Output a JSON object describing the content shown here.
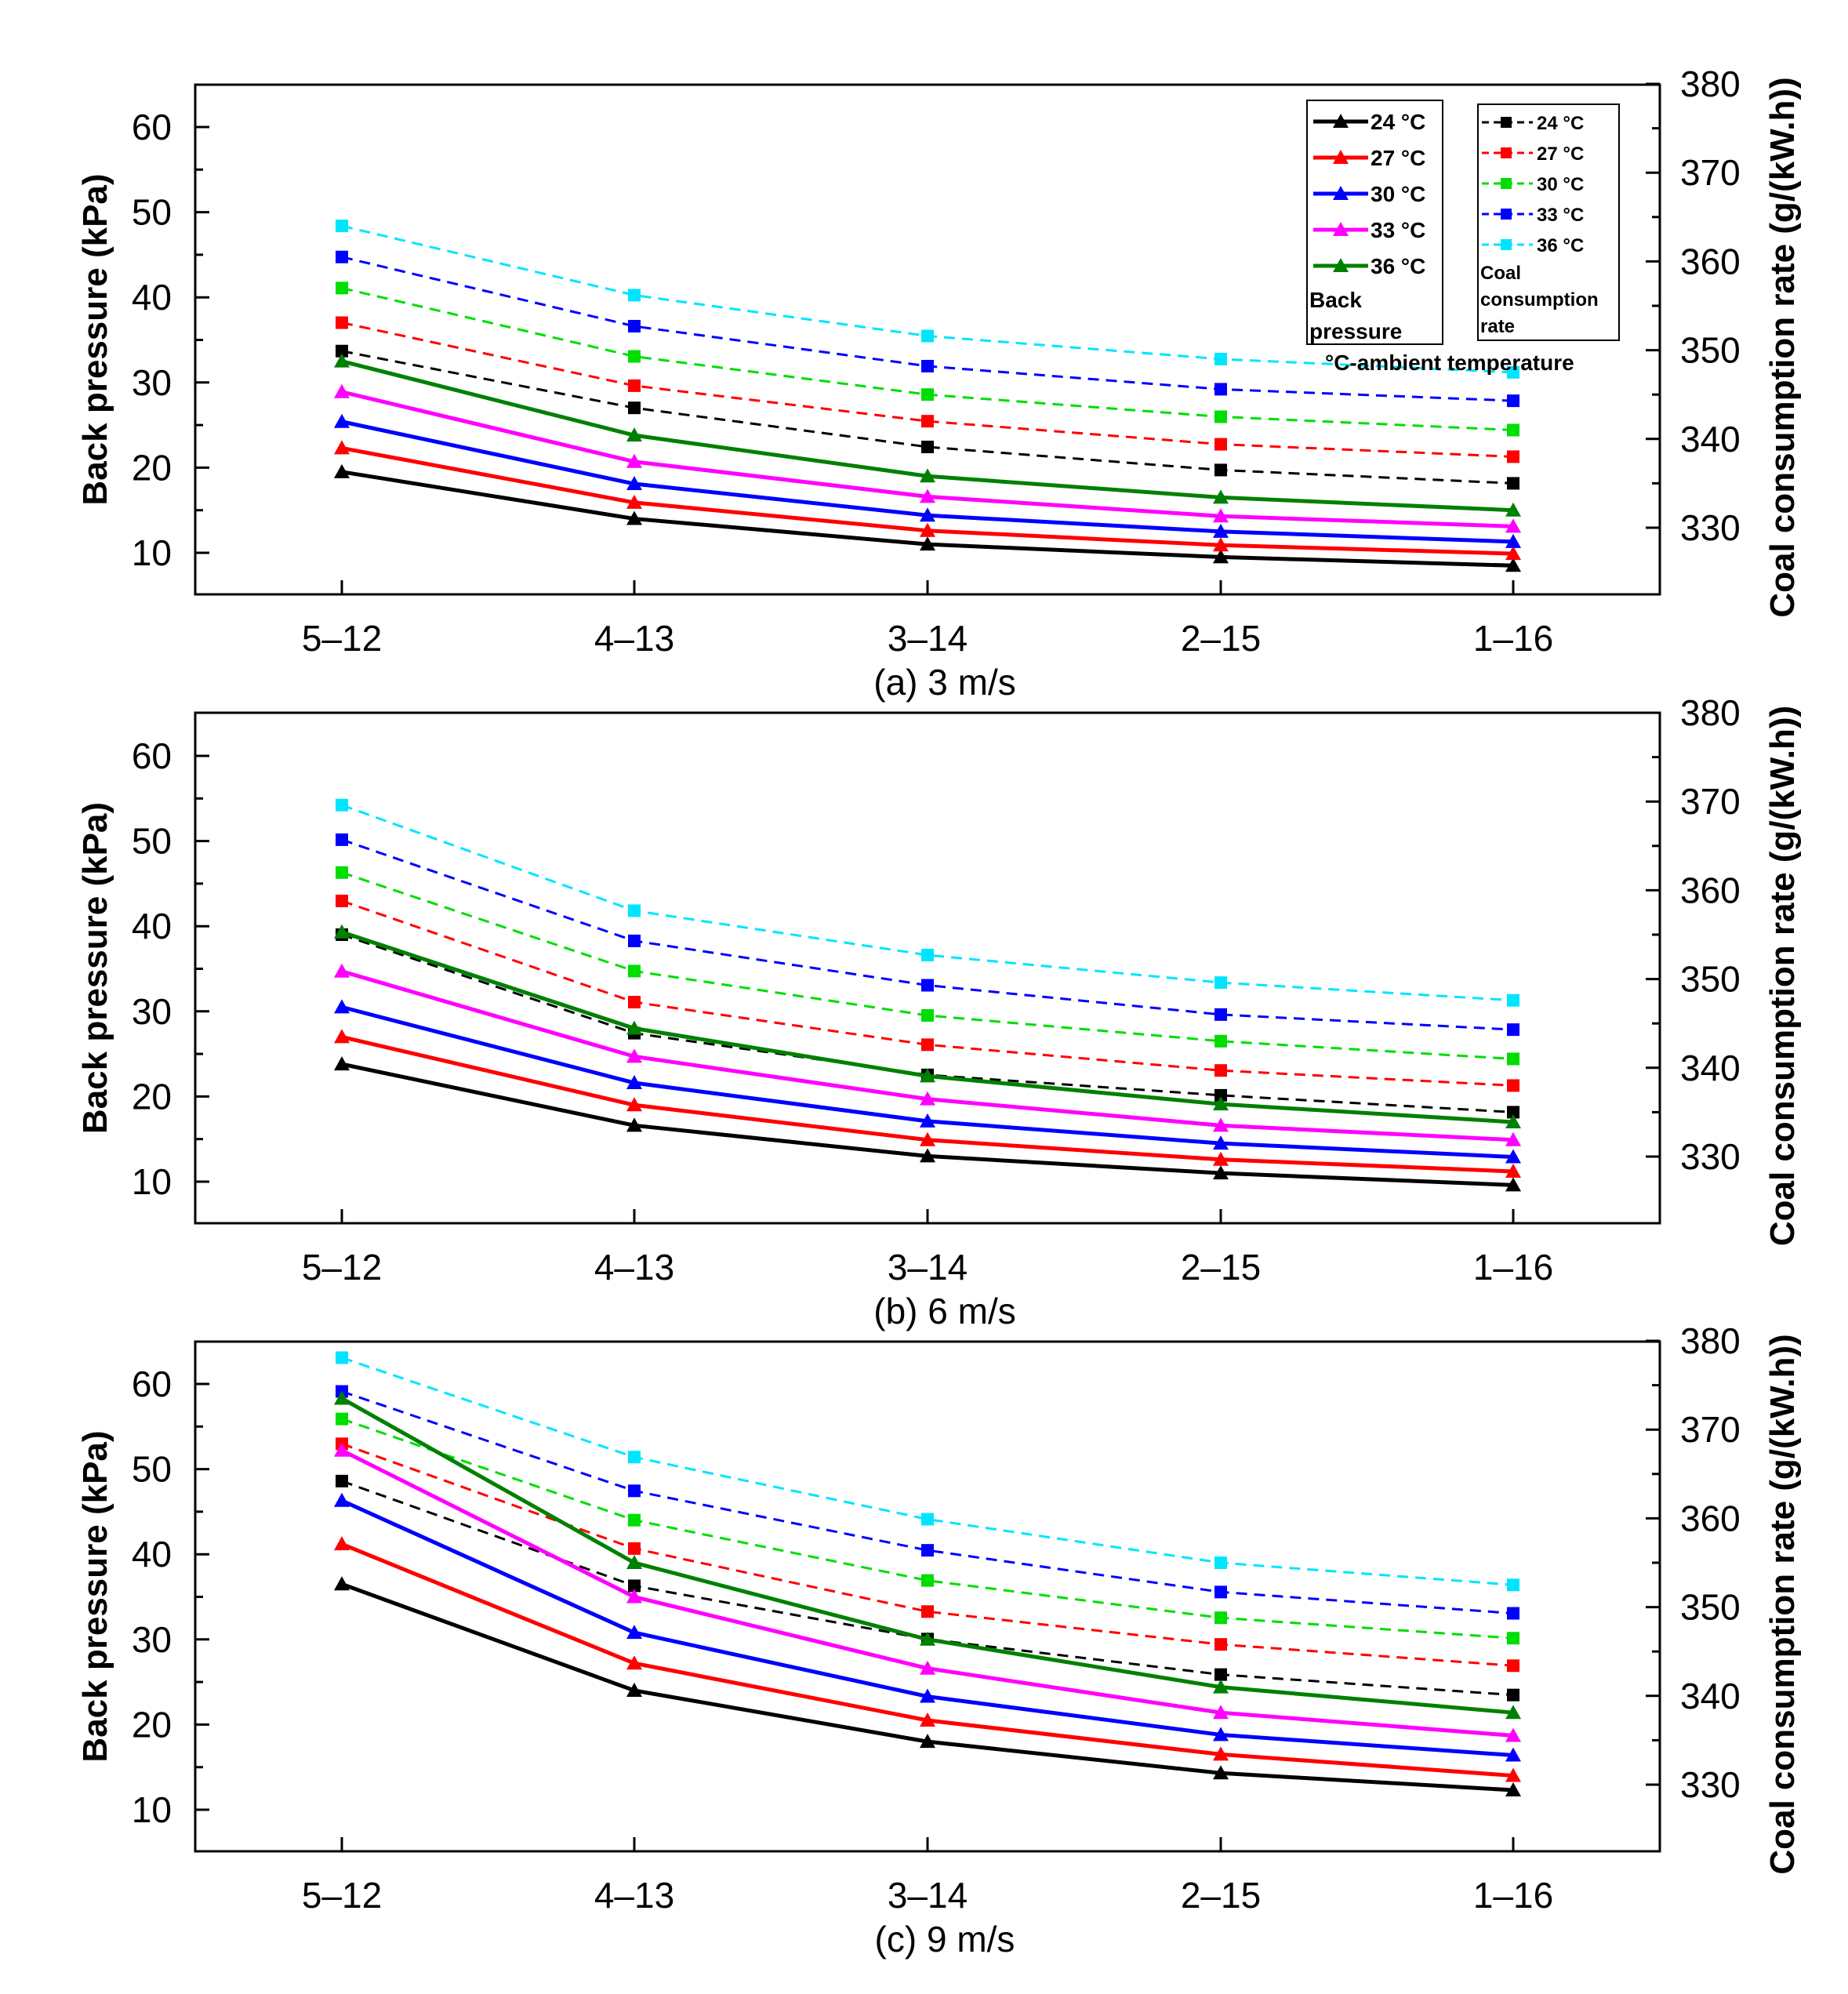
{
  "chart_data": [
    {
      "type": "line",
      "caption": "(a) 3 m/s",
      "categories": [
        "5–12",
        "4–13",
        "3–14",
        "2–15",
        "1–16"
      ],
      "ylabel_left": "Back pressure (kPa)",
      "ylabel_right": "Coal consumption rate (g/(kW.h))",
      "yticks_left": [
        10,
        20,
        30,
        40,
        50,
        60
      ],
      "yticks_right": [
        330,
        340,
        350,
        360,
        370,
        380
      ],
      "back_pressure": [
        {
          "name": "24 °C",
          "color": "#000000",
          "values": [
            19.5,
            14.0,
            11.0,
            9.5,
            8.5
          ]
        },
        {
          "name": "27 °C",
          "color": "#ff0000",
          "values": [
            22.3,
            15.9,
            12.6,
            10.9,
            9.9
          ]
        },
        {
          "name": "30 °C",
          "color": "#0000ff",
          "values": [
            25.4,
            18.1,
            14.4,
            12.5,
            11.3
          ]
        },
        {
          "name": "33 °C",
          "color": "#ff00ff",
          "values": [
            28.9,
            20.7,
            16.6,
            14.3,
            13.1
          ]
        },
        {
          "name": "36 °C",
          "color": "#008000",
          "values": [
            32.5,
            23.8,
            19.0,
            16.5,
            15.0
          ]
        }
      ],
      "coal_consumption": [
        {
          "name": "24 °C",
          "color": "#000000",
          "values": [
            349.9,
            343.5,
            339.1,
            336.5,
            335.0
          ]
        },
        {
          "name": "27 °C",
          "color": "#ff0000",
          "values": [
            353.1,
            346.0,
            342.0,
            339.4,
            338.0
          ]
        },
        {
          "name": "30 °C",
          "color": "#00dd00",
          "values": [
            357.0,
            349.3,
            345.0,
            342.5,
            341.0
          ]
        },
        {
          "name": "33 °C",
          "color": "#0000ff",
          "values": [
            360.5,
            352.7,
            348.2,
            345.6,
            344.3
          ]
        },
        {
          "name": "36 °C",
          "color": "#00e5ff",
          "values": [
            364.0,
            356.2,
            351.6,
            349.0,
            347.5
          ]
        }
      ]
    },
    {
      "type": "line",
      "caption": "(b) 6 m/s",
      "categories": [
        "5–12",
        "4–13",
        "3–14",
        "2–15",
        "1–16"
      ],
      "ylabel_left": "Back pressure (kPa)",
      "ylabel_right": "Coal consumption rate (g/(kW.h))",
      "yticks_left": [
        10,
        20,
        30,
        40,
        50,
        60
      ],
      "yticks_right": [
        330,
        340,
        350,
        360,
        370,
        380
      ],
      "back_pressure": [
        {
          "name": "24 °C",
          "color": "#000000",
          "values": [
            23.8,
            16.6,
            13.0,
            11.0,
            9.6
          ]
        },
        {
          "name": "27 °C",
          "color": "#ff0000",
          "values": [
            27.0,
            19.0,
            14.9,
            12.6,
            11.2
          ]
        },
        {
          "name": "30 °C",
          "color": "#0000ff",
          "values": [
            30.5,
            21.6,
            17.1,
            14.5,
            12.9
          ]
        },
        {
          "name": "33 °C",
          "color": "#ff00ff",
          "values": [
            34.7,
            24.7,
            19.7,
            16.6,
            14.9
          ]
        },
        {
          "name": "36 °C",
          "color": "#008000",
          "values": [
            39.3,
            28.0,
            22.4,
            19.1,
            17.0
          ]
        }
      ],
      "coal_consumption": [
        {
          "name": "24 °C",
          "color": "#000000",
          "values": [
            355.0,
            343.9,
            339.2,
            336.9,
            335.0
          ]
        },
        {
          "name": "27 °C",
          "color": "#ff0000",
          "values": [
            358.8,
            347.4,
            342.6,
            339.7,
            338.0
          ]
        },
        {
          "name": "30 °C",
          "color": "#00dd00",
          "values": [
            362.0,
            350.9,
            345.9,
            343.0,
            341.0
          ]
        },
        {
          "name": "33 °C",
          "color": "#0000ff",
          "values": [
            365.7,
            354.3,
            349.3,
            346.0,
            344.3
          ]
        },
        {
          "name": "36 °C",
          "color": "#00e5ff",
          "values": [
            369.6,
            357.7,
            352.7,
            349.6,
            347.6
          ]
        }
      ]
    },
    {
      "type": "line",
      "caption": "(c) 9 m/s",
      "categories": [
        "5–12",
        "4–13",
        "3–14",
        "2–15",
        "1–16"
      ],
      "ylabel_left": "Back pressure (kPa)",
      "ylabel_right": "Coal consumption rate (g/(kW.h))",
      "yticks_left": [
        10,
        20,
        30,
        40,
        50,
        60
      ],
      "yticks_right": [
        330,
        340,
        350,
        360,
        370,
        380
      ],
      "back_pressure": [
        {
          "name": "24 °C",
          "color": "#000000",
          "values": [
            36.5,
            24.0,
            18.0,
            14.3,
            12.3
          ]
        },
        {
          "name": "27 °C",
          "color": "#ff0000",
          "values": [
            41.2,
            27.2,
            20.5,
            16.5,
            14.0
          ]
        },
        {
          "name": "30 °C",
          "color": "#0000ff",
          "values": [
            46.3,
            30.8,
            23.3,
            18.8,
            16.4
          ]
        },
        {
          "name": "33 °C",
          "color": "#ff00ff",
          "values": [
            52.2,
            35.0,
            26.6,
            21.4,
            18.7
          ]
        },
        {
          "name": "36 °C",
          "color": "#008000",
          "values": [
            58.3,
            39.0,
            30.0,
            24.4,
            21.4
          ]
        }
      ],
      "coal_consumption": [
        {
          "name": "24 °C",
          "color": "#000000",
          "values": [
            364.2,
            352.4,
            346.4,
            342.4,
            340.1
          ]
        },
        {
          "name": "27 °C",
          "color": "#ff0000",
          "values": [
            368.4,
            356.6,
            349.5,
            345.8,
            343.4
          ]
        },
        {
          "name": "30 °C",
          "color": "#00dd00",
          "values": [
            371.2,
            359.8,
            353.0,
            348.8,
            346.5
          ]
        },
        {
          "name": "33 °C",
          "color": "#0000ff",
          "values": [
            374.3,
            363.1,
            356.4,
            351.7,
            349.3
          ]
        },
        {
          "name": "36 °C",
          "color": "#00e5ff",
          "values": [
            378.1,
            366.9,
            359.9,
            355.0,
            352.5
          ]
        }
      ]
    }
  ],
  "legend": {
    "back_pressure_title_line1": "Back",
    "back_pressure_title_line2": "pressure",
    "coal_title_line1": "Coal",
    "coal_title_line2": "consumption",
    "coal_title_line3": "rate",
    "note": "°C-ambient temperature"
  }
}
